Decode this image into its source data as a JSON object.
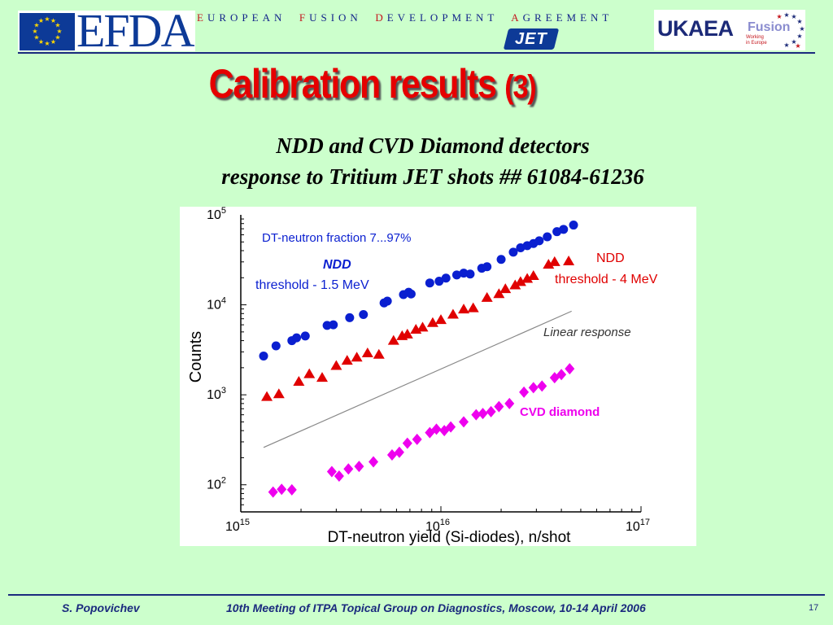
{
  "header": {
    "efda_logo": "EFDA",
    "tagline": [
      {
        "cap": "E",
        "rest": "UROPEAN"
      },
      {
        "cap": "F",
        "rest": "USION"
      },
      {
        "cap": "D",
        "rest": "EVELOPMENT"
      },
      {
        "cap": "A",
        "rest": "GREEMENT"
      }
    ],
    "jet_logo": "JET",
    "ukaea_logo": "UKAEA",
    "fusion_logo": "Fusion",
    "fusion_sub_1": "Working",
    "fusion_sub_2": "in Europe"
  },
  "slide": {
    "title_main": "Calibration results",
    "title_num": "(3)",
    "subtitle_1": "NDD and CVD Diamond detectors",
    "subtitle_2": "response to Tritium JET shots ## 61084-61236"
  },
  "footer": {
    "author": "S. Popovichev",
    "meeting": "10th Meeting of ITPA Topical Group on Diagnostics, Moscow, 10-14 April 2006",
    "page": "17"
  },
  "colors": {
    "background": "#ccffcc",
    "title": "#e50000",
    "ndd_1_5": "#0a1fd0",
    "ndd_4": "#e00000",
    "cvd": "#ee00ee",
    "brand_blue": "#1b2a7e"
  },
  "chart_data": {
    "type": "scatter",
    "xlabel": "DT-neutron yield (Si-diodes), n/shot",
    "ylabel": "Counts",
    "xscale": "log",
    "yscale": "log",
    "xlim": [
      1000000000000000.0,
      1e+17
    ],
    "ylim": [
      50,
      100000
    ],
    "x_ticks": [
      {
        "base": "10",
        "exp": "15"
      },
      {
        "base": "10",
        "exp": "16"
      },
      {
        "base": "10",
        "exp": "17"
      }
    ],
    "y_ticks": [
      {
        "base": "10",
        "exp": "2",
        "value": 100
      },
      {
        "base": "10",
        "exp": "3",
        "value": 1000
      },
      {
        "base": "10",
        "exp": "4",
        "value": 10000
      },
      {
        "base": "10",
        "exp": "5",
        "value": 100000
      }
    ],
    "annotations": {
      "fraction": "DT-neutron fraction 7...97%",
      "ndd_a": "NDD",
      "ndd_a_threshold": "threshold - 1.5 MeV",
      "ndd_b": "NDD",
      "ndd_b_threshold": "threshold - 4 MeV",
      "linear": "Linear response",
      "cvd": "CVD diamond"
    },
    "series": [
      {
        "marker": "circle",
        "color": "#0a1fd0",
        "points": [
          [
            1300000000000000.0,
            2700
          ],
          [
            1500000000000000.0,
            3500
          ],
          [
            1800000000000000.0,
            4000
          ],
          [
            1900000000000000.0,
            4300
          ],
          [
            2100000000000000.0,
            4500
          ],
          [
            2700000000000000.0,
            5900
          ],
          [
            2900000000000000.0,
            6000
          ],
          [
            3500000000000000.0,
            7200
          ],
          [
            4100000000000000.0,
            7800
          ],
          [
            5200000000000000.0,
            10500
          ],
          [
            5400000000000000.0,
            11000
          ],
          [
            6500000000000000.0,
            13000
          ],
          [
            6900000000000000.0,
            13800
          ],
          [
            7100000000000000.0,
            13200
          ],
          [
            8800000000000000.0,
            17500
          ],
          [
            9800000000000000.0,
            18300
          ],
          [
            1.06e+16,
            19800
          ],
          [
            1.2e+16,
            21500
          ],
          [
            1.3e+16,
            22500
          ],
          [
            1.4e+16,
            22000
          ],
          [
            1.6e+16,
            25500
          ],
          [
            1.7e+16,
            26500
          ],
          [
            2e+16,
            32000
          ],
          [
            2.3e+16,
            38500
          ],
          [
            2.5e+16,
            43000
          ],
          [
            2.7e+16,
            45500
          ],
          [
            2.9e+16,
            48000
          ],
          [
            3.1e+16,
            51500
          ],
          [
            3.4e+16,
            57000
          ],
          [
            3.8e+16,
            65000
          ],
          [
            4.1e+16,
            69000
          ],
          [
            4.6e+16,
            77000
          ]
        ]
      },
      {
        "marker": "triangle",
        "color": "#e00000",
        "points": [
          [
            1350000000000000.0,
            950
          ],
          [
            1550000000000000.0,
            1020
          ],
          [
            1950000000000000.0,
            1400
          ],
          [
            2200000000000000.0,
            1700
          ],
          [
            2550000000000000.0,
            1550
          ],
          [
            3000000000000000.0,
            2100
          ],
          [
            3400000000000000.0,
            2400
          ],
          [
            3800000000000000.0,
            2600
          ],
          [
            4300000000000000.0,
            2900
          ],
          [
            4900000000000000.0,
            2800
          ],
          [
            5800000000000000.0,
            4000
          ],
          [
            6400000000000000.0,
            4500
          ],
          [
            6800000000000000.0,
            4700
          ],
          [
            7500000000000000.0,
            5300
          ],
          [
            8100000000000000.0,
            5600
          ],
          [
            9100000000000000.0,
            6300
          ],
          [
            1e+16,
            6800
          ],
          [
            1.15e+16,
            7800
          ],
          [
            1.3e+16,
            8900
          ],
          [
            1.45e+16,
            9200
          ],
          [
            1.7e+16,
            12000
          ],
          [
            1.95e+16,
            13200
          ],
          [
            2.1e+16,
            15000
          ],
          [
            2.35e+16,
            16500
          ],
          [
            2.5e+16,
            18000
          ],
          [
            2.7e+16,
            19500
          ],
          [
            2.9e+16,
            21000
          ],
          [
            3.45e+16,
            28000
          ],
          [
            3.7e+16,
            30000
          ],
          [
            4.35e+16,
            30500
          ]
        ]
      },
      {
        "marker": "diamond",
        "color": "#ee00ee",
        "points": [
          [
            1450000000000000.0,
            83
          ],
          [
            1600000000000000.0,
            89
          ],
          [
            1800000000000000.0,
            88
          ],
          [
            2850000000000000.0,
            140
          ],
          [
            3100000000000000.0,
            125
          ],
          [
            3450000000000000.0,
            150
          ],
          [
            3900000000000000.0,
            160
          ],
          [
            4600000000000000.0,
            180
          ],
          [
            5700000000000000.0,
            215
          ],
          [
            6200000000000000.0,
            230
          ],
          [
            6800000000000000.0,
            290
          ],
          [
            7600000000000000.0,
            320
          ],
          [
            8800000000000000.0,
            380
          ],
          [
            9500000000000000.0,
            415
          ],
          [
            1.04e+16,
            400
          ],
          [
            1.12e+16,
            440
          ],
          [
            1.3e+16,
            500
          ],
          [
            1.5e+16,
            600
          ],
          [
            1.62e+16,
            620
          ],
          [
            1.78e+16,
            650
          ],
          [
            1.95e+16,
            740
          ],
          [
            2.2e+16,
            800
          ],
          [
            2.6e+16,
            1070
          ],
          [
            2.9e+16,
            1200
          ],
          [
            3.2e+16,
            1250
          ],
          [
            3.7e+16,
            1550
          ],
          [
            4e+16,
            1680
          ],
          [
            4.4e+16,
            1950
          ]
        ]
      },
      {
        "marker": "line",
        "color": "#888888",
        "points": [
          [
            1300000000000000.0,
            260
          ],
          [
            4.5e+16,
            8500
          ]
        ]
      }
    ]
  }
}
